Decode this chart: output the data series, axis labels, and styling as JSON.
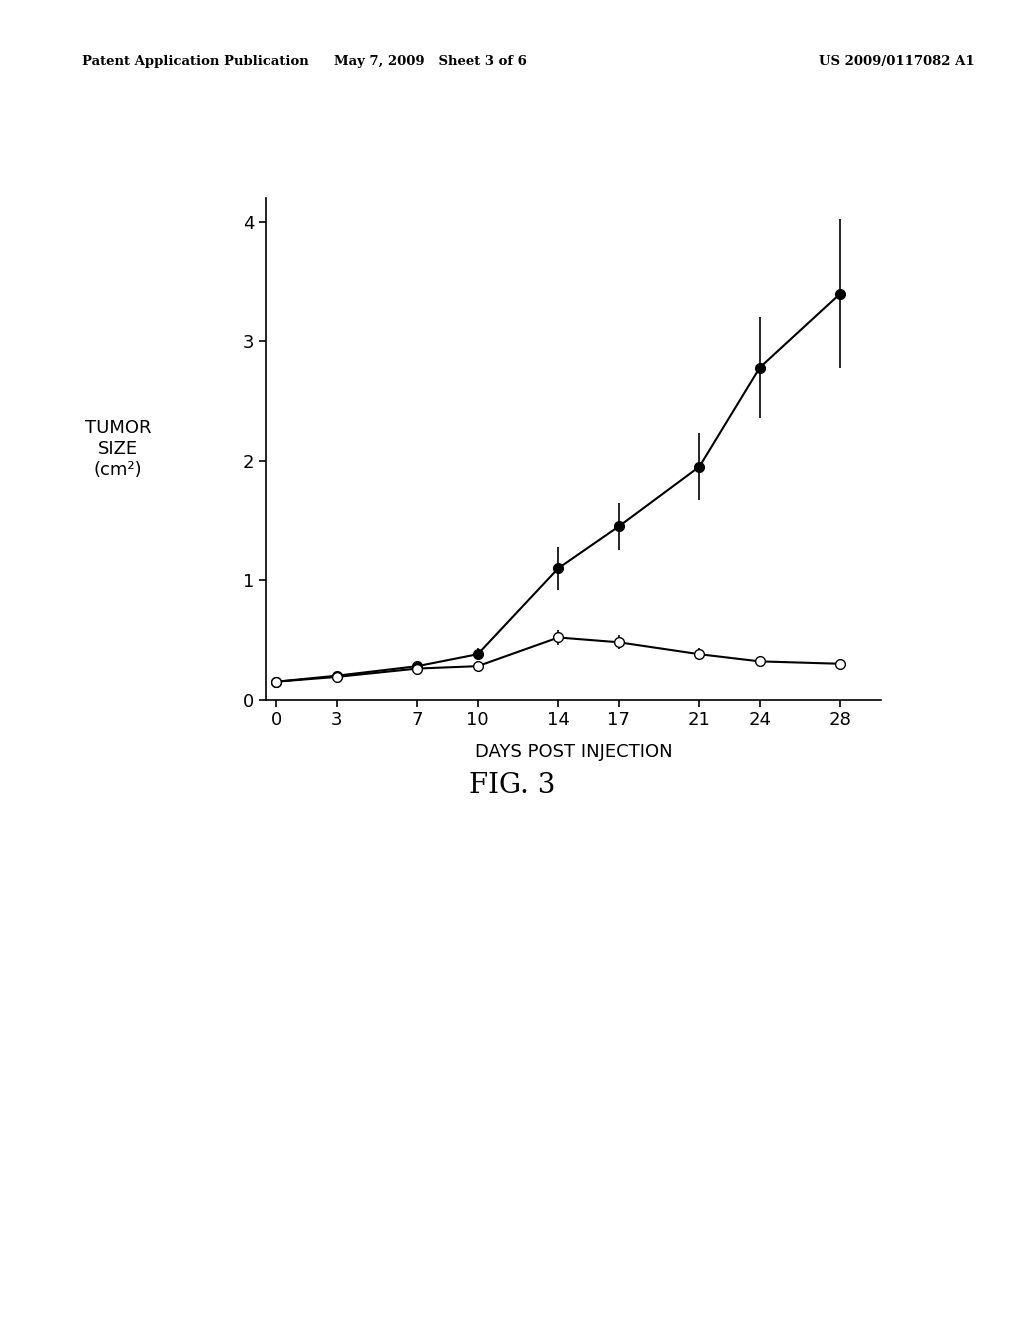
{
  "x": [
    0,
    3,
    7,
    10,
    14,
    17,
    21,
    24,
    28
  ],
  "filled_y": [
    0.15,
    0.2,
    0.28,
    0.38,
    1.1,
    1.45,
    1.95,
    2.78,
    3.4
  ],
  "filled_yerr": [
    0.02,
    0.03,
    0.04,
    0.05,
    0.18,
    0.2,
    0.28,
    0.42,
    0.62
  ],
  "open_y": [
    0.15,
    0.19,
    0.26,
    0.28,
    0.52,
    0.48,
    0.38,
    0.32,
    0.3
  ],
  "open_yerr": [
    0.02,
    0.03,
    0.04,
    0.04,
    0.06,
    0.06,
    0.05,
    0.04,
    0.04
  ],
  "xlabel": "DAYS POST INJECTION",
  "ylabel_line1": "TUMOR",
  "ylabel_line2": "SIZE",
  "ylabel_line3": "(cm²)",
  "ylim": [
    0,
    4.2
  ],
  "yticks": [
    0,
    1,
    2,
    3,
    4
  ],
  "xlim": [
    -0.5,
    30
  ],
  "xticks": [
    0,
    3,
    7,
    10,
    14,
    17,
    21,
    24,
    28
  ],
  "fig_caption": "FIG. 3",
  "header_left": "Patent Application Publication",
  "header_mid": "May 7, 2009   Sheet 3 of 6",
  "header_right": "US 2009/0117082 A1",
  "background_color": "#ffffff",
  "line_color": "#000000",
  "marker_size": 7,
  "linewidth": 1.5
}
